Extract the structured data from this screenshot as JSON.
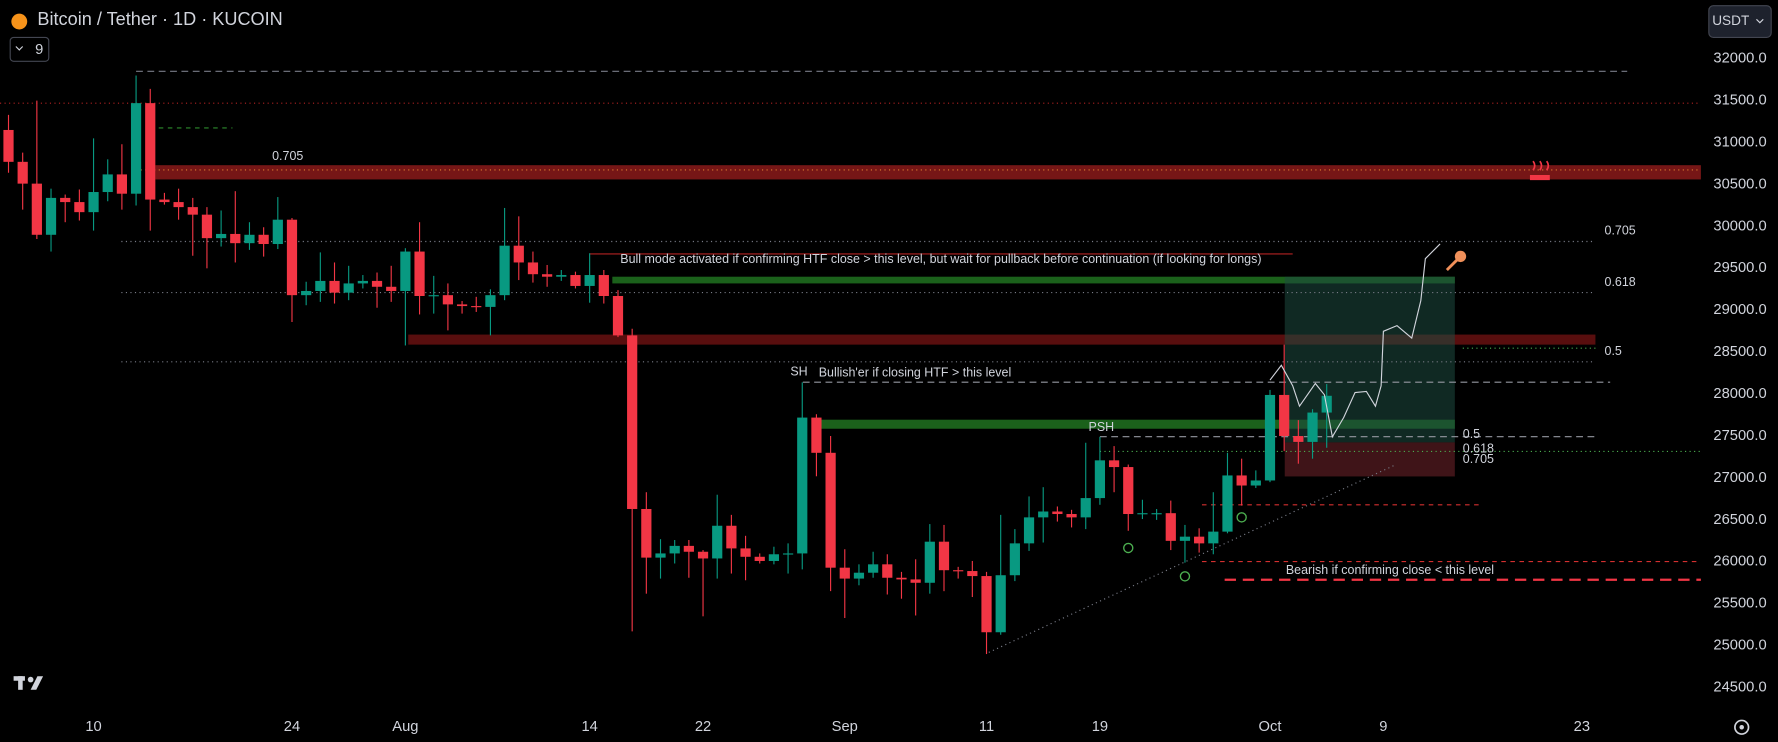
{
  "header": {
    "title": "Bitcoin / Tether · 1D · KUCOIN",
    "indicators": "9",
    "currency": "USDT"
  },
  "chart_data": {
    "type": "candlestick",
    "up_color": "#089981",
    "down_color": "#f23645",
    "categories": [
      null,
      null,
      null,
      null,
      null,
      null,
      "10",
      null,
      null,
      null,
      null,
      null,
      null,
      null,
      null,
      null,
      null,
      null,
      null,
      null,
      "24",
      null,
      null,
      null,
      null,
      null,
      null,
      null,
      "Aug",
      null,
      null,
      null,
      null,
      null,
      null,
      null,
      null,
      null,
      null,
      null,
      null,
      "14",
      null,
      null,
      null,
      null,
      null,
      null,
      null,
      "22",
      null,
      null,
      null,
      null,
      null,
      null,
      null,
      null,
      null,
      "Sep",
      null,
      null,
      null,
      null,
      null,
      null,
      null,
      null,
      null,
      "11",
      null,
      null,
      null,
      null,
      null,
      null,
      null,
      "19",
      null,
      null,
      null,
      null,
      null,
      null,
      null,
      null,
      null,
      null,
      null,
      "Oct",
      null,
      null,
      null,
      null,
      null,
      null,
      null,
      "9",
      null,
      null,
      null,
      null,
      null,
      null,
      null,
      null,
      null,
      null,
      null,
      null,
      null,
      "23",
      null,
      null,
      null,
      null,
      null,
      null,
      null,
      null
    ],
    "open": [
      31150,
      30770,
      30510,
      29900,
      30340,
      30290,
      30170,
      30410,
      30620,
      30390,
      31470,
      30320,
      30290,
      30230,
      30140,
      29860,
      29910,
      29800,
      29900,
      29790,
      30080,
      29180,
      29230,
      29350,
      29210,
      29320,
      29350,
      29280,
      29230,
      29700,
      29170,
      29180,
      29070,
      29050,
      29040,
      29180,
      29770,
      29570,
      29430,
      29400,
      29420,
      29290,
      29420,
      29170,
      28700,
      26630,
      26050,
      26100,
      26190,
      26120,
      26040,
      26430,
      26160,
      26060,
      26010,
      26090,
      26100,
      27720,
      27300,
      25930,
      25800,
      25870,
      25970,
      25810,
      25790,
      25750,
      26240,
      25900,
      25890,
      25830,
      25160,
      25840,
      26220,
      26530,
      26600,
      26570,
      26530,
      26760,
      27210,
      27130,
      26570,
      26580,
      26580,
      26250,
      26300,
      26220,
      26360,
      27030,
      26910,
      26970,
      27990,
      27500,
      27430,
      27780,
      null,
      null,
      null,
      null,
      null,
      null,
      null,
      null,
      null,
      null,
      null,
      null,
      null,
      null,
      null,
      null,
      null,
      null,
      null,
      null,
      null,
      null,
      null,
      null,
      null,
      null
    ],
    "high": [
      31330,
      30880,
      31500,
      30450,
      30380,
      30440,
      31050,
      30800,
      30980,
      31800,
      31640,
      30400,
      30450,
      30340,
      30230,
      30190,
      30420,
      30050,
      29990,
      30350,
      30100,
      29340,
      29690,
      29570,
      29530,
      29420,
      29450,
      29530,
      29740,
      30050,
      29410,
      29320,
      29110,
      29160,
      29250,
      30220,
      30120,
      29700,
      29540,
      29480,
      29460,
      29680,
      29480,
      29240,
      28780,
      26830,
      26270,
      26260,
      26260,
      26140,
      26800,
      26560,
      26310,
      26100,
      26180,
      26220,
      28140,
      27760,
      27500,
      26150,
      25970,
      26120,
      26090,
      25880,
      26030,
      26450,
      26440,
      25940,
      26010,
      25880,
      26560,
      26390,
      26780,
      26890,
      26660,
      26620,
      27420,
      27490,
      27380,
      27160,
      26740,
      26630,
      26730,
      26440,
      26400,
      26830,
      27300,
      27230,
      27090,
      28050,
      28590,
      27690,
      27820,
      28120,
      null,
      null,
      null,
      null,
      null,
      null,
      null,
      null,
      null,
      null,
      null,
      null,
      null,
      null,
      null,
      null,
      null,
      null,
      null,
      null,
      null,
      null,
      null,
      null,
      null,
      null
    ],
    "low": [
      30640,
      30200,
      29850,
      29700,
      30050,
      30070,
      29950,
      30300,
      30200,
      30250,
      29950,
      30260,
      30080,
      29650,
      29500,
      29760,
      29570,
      29720,
      29640,
      29730,
      28860,
      29060,
      29100,
      29080,
      29120,
      29260,
      29030,
      29100,
      28580,
      28950,
      28960,
      28760,
      28960,
      28980,
      28700,
      29120,
      29360,
      29330,
      29280,
      29350,
      29260,
      29090,
      29080,
      28680,
      25170,
      25620,
      25800,
      25980,
      25810,
      25350,
      25800,
      25860,
      25780,
      25980,
      25970,
      25860,
      25910,
      27020,
      25650,
      25330,
      25720,
      25810,
      25610,
      25560,
      25360,
      25620,
      25650,
      25800,
      25580,
      24900,
      25130,
      25770,
      26130,
      26230,
      26480,
      26410,
      26390,
      26680,
      26830,
      26370,
      26510,
      26500,
      26140,
      25990,
      26110,
      26090,
      26340,
      26670,
      26880,
      26950,
      27320,
      27170,
      27230,
      27360,
      null,
      null,
      null,
      null,
      null,
      null,
      null,
      null,
      null,
      null,
      null,
      null,
      null,
      null,
      null,
      null,
      null,
      null,
      null,
      null,
      null,
      null,
      null,
      null,
      null,
      null
    ],
    "close": [
      30770,
      30510,
      29900,
      30340,
      30290,
      30170,
      30410,
      30620,
      30390,
      31470,
      30320,
      30290,
      30230,
      30140,
      29860,
      29910,
      29800,
      29900,
      29790,
      30080,
      29180,
      29230,
      29350,
      29210,
      29320,
      29350,
      29280,
      29230,
      29700,
      29170,
      29180,
      29070,
      29050,
      29040,
      29180,
      29770,
      29570,
      29430,
      29400,
      29420,
      29290,
      29420,
      29170,
      28700,
      26630,
      26050,
      26100,
      26190,
      26120,
      26040,
      26430,
      26160,
      26060,
      26010,
      26090,
      26100,
      27720,
      27300,
      25930,
      25800,
      25870,
      25970,
      25810,
      25790,
      25750,
      26240,
      25900,
      25890,
      25830,
      25160,
      25840,
      26220,
      26530,
      26600,
      26570,
      26530,
      26760,
      27210,
      27130,
      26570,
      26580,
      26580,
      26250,
      26300,
      26220,
      26360,
      27030,
      26910,
      26970,
      27990,
      27500,
      27430,
      27780,
      27980,
      null,
      null,
      null,
      null,
      null,
      null,
      null,
      null,
      null,
      null,
      null,
      null,
      null,
      null,
      null,
      null,
      null,
      null,
      null,
      null,
      null,
      null,
      null,
      null,
      null,
      null
    ],
    "ylim": [
      24230,
      32700
    ],
    "yticks": [
      {
        "value": 32000,
        "label": "32000.0"
      },
      {
        "value": 31500,
        "label": "31500.0"
      },
      {
        "value": 31000,
        "label": "31000.0"
      },
      {
        "value": 30500,
        "label": "30500.0"
      },
      {
        "value": 30000,
        "label": "30000.0"
      },
      {
        "value": 29500,
        "label": "29500.0"
      },
      {
        "value": 29000,
        "label": "29000.0"
      },
      {
        "value": 28500,
        "label": "28500.0"
      },
      {
        "value": 28000,
        "label": "28000.0"
      },
      {
        "value": 27500,
        "label": "27500.0"
      },
      {
        "value": 27000,
        "label": "27000.0"
      },
      {
        "value": 26500,
        "label": "26500.0"
      },
      {
        "value": 26000,
        "label": "26000.0"
      },
      {
        "value": 25500,
        "label": "25500.0"
      },
      {
        "value": 25000,
        "label": "25000.0"
      },
      {
        "value": 24500,
        "label": "24500.0"
      }
    ],
    "zones": [
      {
        "low": 30560,
        "high": 30730,
        "color": "#8b1a1a"
      },
      {
        "low": 28590,
        "high": 28710,
        "color": "#6e1212"
      },
      {
        "low": 29320,
        "high": 29400,
        "color": "#1e6b1e"
      },
      {
        "low": 27587,
        "high": 27695,
        "color": "#1e6b1e"
      },
      {
        "low": 27424,
        "high": 29400,
        "color": "#1d4a40"
      },
      {
        "low": 27018,
        "high": 27424,
        "color": "#5a1c22"
      }
    ],
    "levels": [
      {
        "price": 31850,
        "color": "#787b86",
        "dash": "6 4"
      },
      {
        "price": 31470,
        "color": "#b22222",
        "dash": "1 3"
      },
      {
        "price": 31174,
        "color": "#2e8b2e",
        "dash": "4 4"
      },
      {
        "price": 30673,
        "color": "#e08030",
        "dash": "1 3"
      },
      {
        "price": 29820,
        "color": "#787b86",
        "dash": "1 3"
      },
      {
        "price": 29211,
        "color": "#787b86",
        "dash": "1 3"
      },
      {
        "price": 28385,
        "color": "#787b86",
        "dash": "1 3"
      },
      {
        "price": 28548,
        "color": "#4caf50",
        "dash": "1 3"
      },
      {
        "price": 29672,
        "color": "#b22222",
        "dash": "0"
      },
      {
        "price": 28142,
        "color": "#9598a1",
        "dash": "6 4"
      },
      {
        "price": 27492,
        "color": "#9598a1",
        "dash": "6 4"
      },
      {
        "price": 27316,
        "color": "#4caf50",
        "dash": "1 3"
      },
      {
        "price": 26680,
        "color": "#d32f2f",
        "dash": "4 4"
      },
      {
        "price": 26003,
        "color": "#d32f2f",
        "dash": "4 4"
      },
      {
        "price": 25786,
        "color": "#f23645",
        "dash": "10 6"
      }
    ],
    "trendline": [
      24920,
      27153
    ],
    "annotations": [
      {
        "text": "0.705",
        "color": "#d1d4dc"
      },
      {
        "text": "Bull mode activated if confirming HTF close > this level, but wait for pullback before continuation (if looking for longs)",
        "color": "#9598a1"
      },
      {
        "text": "SH",
        "color": "#d1d4dc"
      },
      {
        "text": "Bullish'er if closing HTF > this level",
        "color": "#787b86"
      },
      {
        "text": "PSH",
        "color": "#d1d4dc"
      },
      {
        "text": "Bearish if confirming close < this level",
        "color": "#b22222"
      },
      {
        "text": "0.705",
        "color": "#d1d4dc"
      },
      {
        "text": "0.618",
        "color": "#d1d4dc"
      },
      {
        "text": "0.5",
        "color": "#4caf50"
      },
      {
        "text": "0.5",
        "color": "#4caf50"
      },
      {
        "text": "0.618",
        "color": "#d1d4dc"
      },
      {
        "text": "0.705",
        "color": "#d1d4dc"
      }
    ]
  }
}
